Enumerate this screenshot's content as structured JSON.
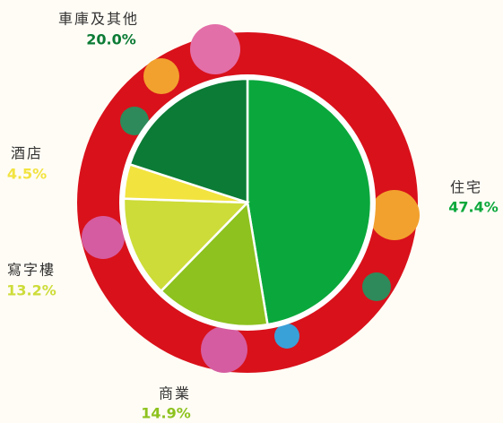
{
  "chart_data": {
    "type": "pie",
    "categories": [
      "住宅",
      "商業",
      "寫字樓",
      "酒店",
      "車庫及其他"
    ],
    "values": [
      47.4,
      14.9,
      13.2,
      4.5,
      20.0
    ],
    "value_labels": [
      "47.4%",
      "14.9%",
      "13.2%",
      "4.5%",
      "20.0%"
    ],
    "colors": [
      "#0aa83c",
      "#8dc21f",
      "#cddc39",
      "#f2e33f",
      "#0b7b35"
    ]
  }
}
